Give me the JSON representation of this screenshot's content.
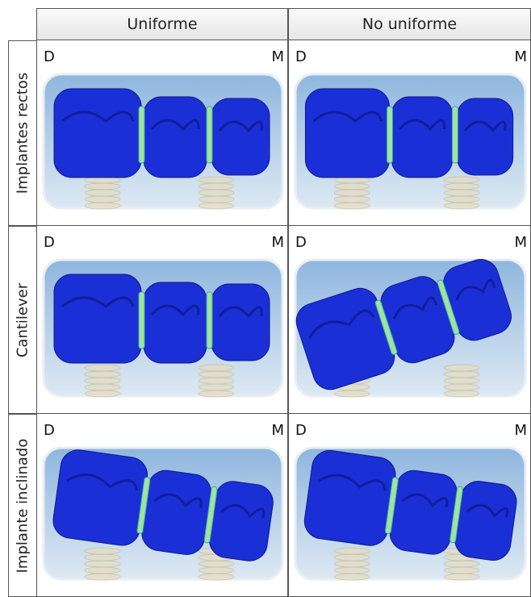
{
  "table": {
    "columns": [
      "Uniforme",
      "No uniforme"
    ],
    "rows": [
      {
        "label": "Implantes rectos",
        "cells": [
          {
            "left": "D",
            "right": "M"
          },
          {
            "left": "D",
            "right": "M"
          }
        ]
      },
      {
        "label": "Cantilever",
        "cells": [
          {
            "left": "D",
            "right": "M"
          },
          {
            "left": "D",
            "right": "M"
          }
        ]
      },
      {
        "label": "Implante inclinado",
        "cells": [
          {
            "left": "D",
            "right": "M"
          },
          {
            "left": "D",
            "right": "M"
          }
        ]
      }
    ]
  }
}
